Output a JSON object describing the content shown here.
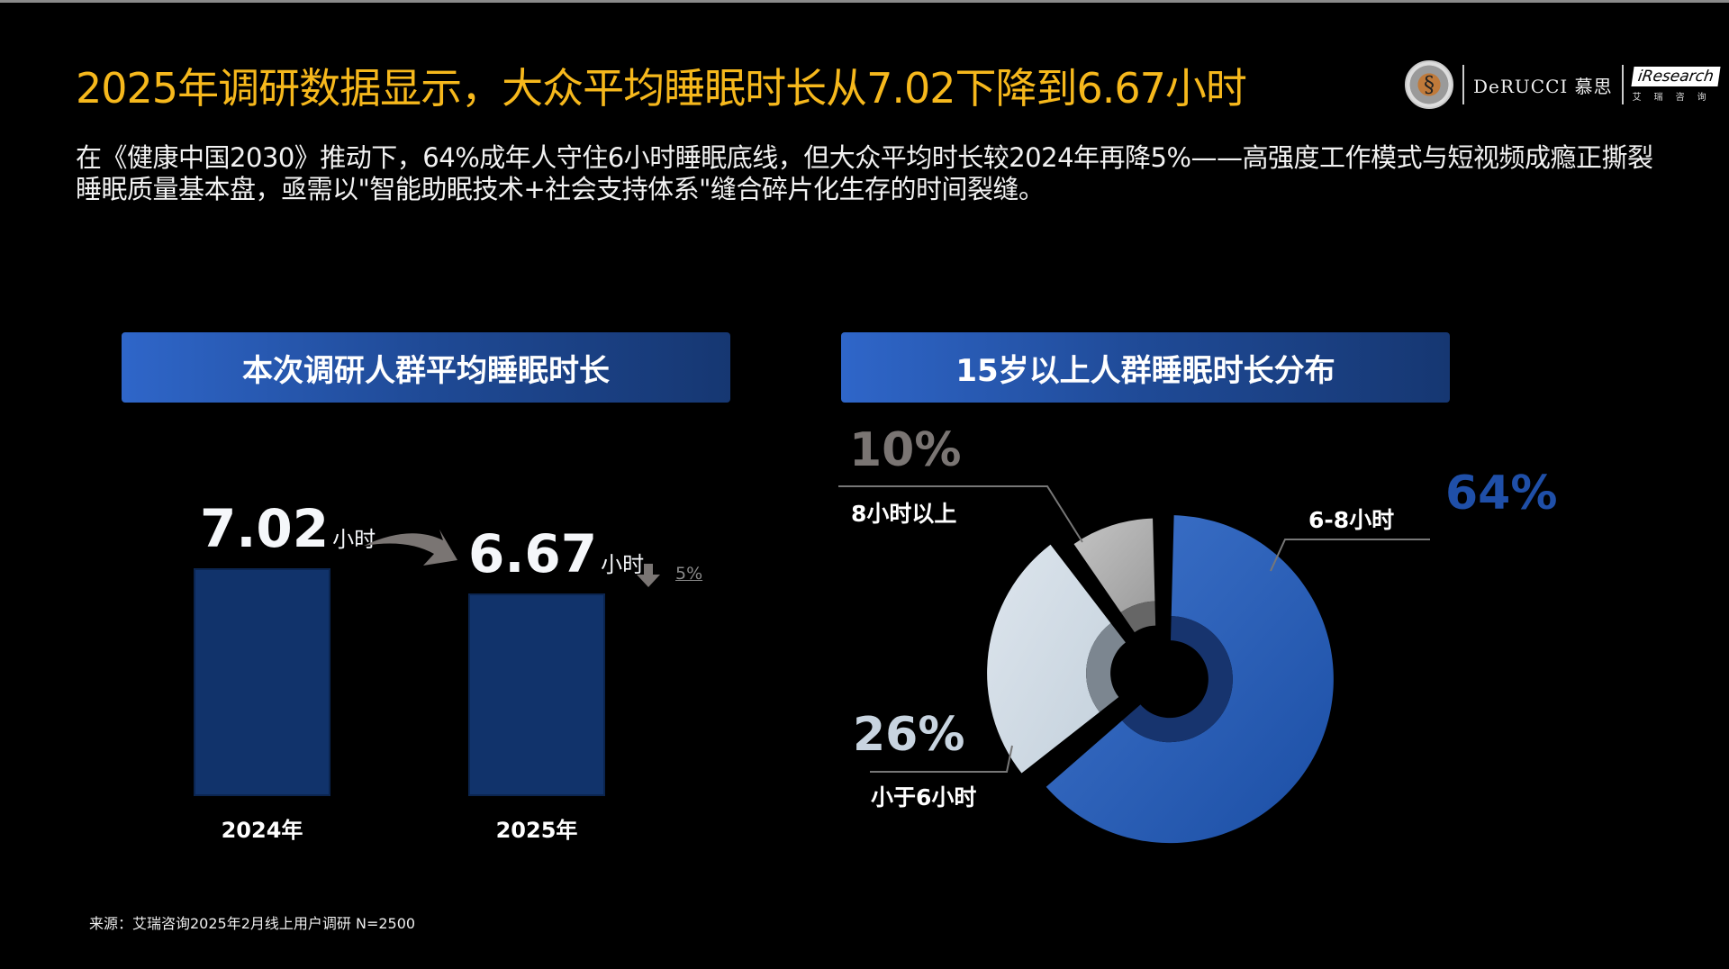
{
  "title": "2025年调研数据显示，大众平均睡眠时长从7.02下降到6.67小时",
  "subtitle": "在《健康中国2030》推动下，64%成年人守住6小时睡眠底线，但大众平均时长较2024年再降5%——高强度工作模式与短视频成瘾正撕裂睡眠质量基本盘，亟需以\"智能助眠技术+社会支持体系\"缝合碎片化生存的时间裂缝。",
  "logos": {
    "derucci": "DeRUCCI 慕思",
    "iresearch": "iResearch",
    "iresearch_cn": "艾瑞咨询"
  },
  "source": "来源：艾瑞咨询2025年2月线上用户调研 N=2500",
  "chart_data": [
    {
      "type": "bar",
      "title": "本次调研人群平均睡眠时长",
      "categories": [
        "2024年",
        "2025年"
      ],
      "values": [
        7.02,
        6.67
      ],
      "value_labels": [
        "7.02",
        "6.67"
      ],
      "unit": "小时",
      "change": {
        "direction": "down",
        "label": "5%"
      },
      "bar_color": "#11336b"
    },
    {
      "type": "pie",
      "title": "15岁以上人群睡眠时长分布",
      "slices": [
        {
          "label": "6-8小时",
          "value": 64,
          "value_label": "64%",
          "color": "#1f4fa8"
        },
        {
          "label": "小于6小时",
          "value": 26,
          "value_label": "26%",
          "color": "#c8d4e0"
        },
        {
          "label": "8小时以上",
          "value": 10,
          "value_label": "10%",
          "color": "#a8a8a8"
        }
      ]
    }
  ],
  "colors": {
    "title": "#f6b81c",
    "accent": "#1f4fa8"
  }
}
